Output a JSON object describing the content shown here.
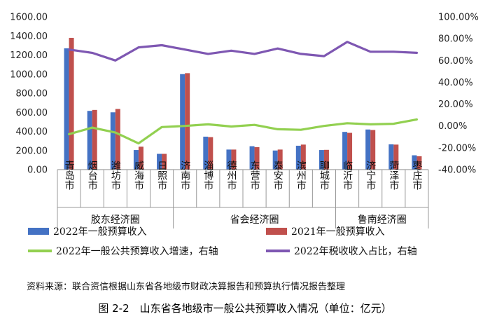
{
  "chart_data": {
    "type": "bar",
    "categories": [
      "青岛市",
      "烟台市",
      "潍坊市",
      "威海市",
      "日照市",
      "济南市",
      "淄博市",
      "德州市",
      "东营市",
      "泰安市",
      "滨州市",
      "聊城市",
      "临沂市",
      "济宁市",
      "菏泽市",
      "枣庄市"
    ],
    "groups": [
      {
        "label": "胶东经济圈",
        "start": 0,
        "end": 4
      },
      {
        "label": "省会经济圈",
        "start": 5,
        "end": 11
      },
      {
        "label": "鲁南经济圈",
        "start": 12,
        "end": 15
      }
    ],
    "series": [
      {
        "name": "2022年一般预算收入",
        "kind": "bar",
        "axis": "left",
        "color": "#4472C4",
        "values": [
          1270,
          615,
          600,
          205,
          165,
          1000,
          345,
          210,
          245,
          200,
          250,
          205,
          395,
          420,
          265,
          150
        ]
      },
      {
        "name": "2021年一般预算收入",
        "kind": "bar",
        "axis": "left",
        "color": "#C0504D",
        "values": [
          1380,
          625,
          635,
          240,
          165,
          1010,
          340,
          210,
          235,
          210,
          262,
          207,
          385,
          415,
          262,
          140
        ]
      },
      {
        "name": "2022年一般公共预算收入增速，右轴",
        "kind": "line",
        "axis": "right",
        "color": "#92D050",
        "values": [
          -7.5,
          -1.5,
          -6,
          -16,
          -1,
          0,
          1.5,
          -0.5,
          1,
          -3,
          -3.5,
          0,
          2.5,
          1.5,
          2,
          6
        ]
      },
      {
        "name": "2022年税收收入占比，右轴",
        "kind": "line",
        "axis": "right",
        "color": "#7E57B2",
        "values": [
          70,
          67,
          60,
          72,
          74,
          70,
          66,
          69,
          66,
          71,
          66,
          64,
          77,
          68,
          68,
          67
        ]
      }
    ],
    "yleft": {
      "min": 0,
      "max": 1600,
      "step": 200,
      "tick_labels": [
        "0.00",
        "200.00",
        "400.00",
        "600.00",
        "800.00",
        "1000.00",
        "1200.00",
        "1400.00",
        "1600.00"
      ]
    },
    "yright": {
      "min": -40,
      "max": 100,
      "step": 20,
      "tick_labels": [
        "-40.00%",
        "-20.00%",
        "0.00%",
        "20.00%",
        "40.00%",
        "60.00%",
        "80.00%",
        "100.00%"
      ]
    },
    "grid": false,
    "legend_position": "bottom"
  },
  "source_note": "资料来源：联合资信根据山东省各地级市财政决算报告和预算执行情况报告整理",
  "caption": "图 2-2　山东省各地级市一般公共预算收入情况（单位：亿元）"
}
